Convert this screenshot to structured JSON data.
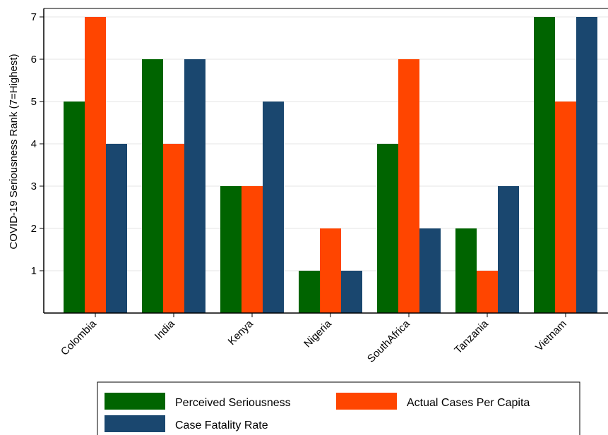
{
  "chart_data": {
    "type": "bar",
    "categories": [
      "Colombia",
      "India",
      "Kenya",
      "Nigeria",
      "SouthAfrica",
      "Tanzania",
      "Vietnam"
    ],
    "series": [
      {
        "name": "Perceived Seriousness",
        "values": [
          5,
          6,
          3,
          1,
          4,
          2,
          7
        ],
        "color": "#006400"
      },
      {
        "name": "Actual Cases Per Capita",
        "values": [
          7,
          4,
          3,
          2,
          6,
          1,
          5
        ],
        "color": "#FF4500"
      },
      {
        "name": "Case Fatality Rate",
        "values": [
          4,
          6,
          5,
          1,
          2,
          3,
          7
        ],
        "color": "#1A476F"
      }
    ],
    "title": "",
    "xlabel": "",
    "ylabel": "COVID-19 Seriousness Rank (7=Highest)",
    "yticks": [
      1,
      2,
      3,
      4,
      5,
      6,
      7
    ],
    "ylim": [
      0,
      7.2
    ],
    "grid": true,
    "legend_position": "bottom"
  }
}
